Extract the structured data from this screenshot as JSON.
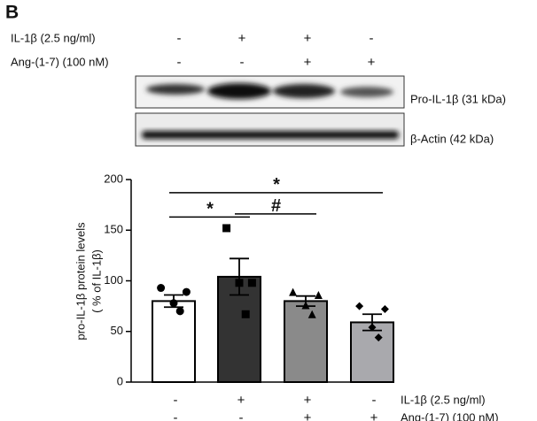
{
  "panel_label": "B",
  "blot": {
    "bands": [
      "Pro-IL-1β (31 kDa)",
      "β-Actin (42 kDa)"
    ]
  },
  "treatments": [
    {
      "label": "IL-1β  (2.5 ng/ml)",
      "signs": [
        "-",
        "+",
        "+",
        "-"
      ]
    },
    {
      "label": "Ang-(1-7) (100 nM)",
      "signs": [
        "-",
        "-",
        "+",
        "+"
      ]
    }
  ],
  "chart_data": {
    "type": "bar",
    "y_label": [
      "pro-IL-1β protein levels",
      "( % of IL-1β)"
    ],
    "conditions": [
      {
        "label": "IL-1β (2.5 ng/ml)",
        "signs": [
          "-",
          "+",
          "+",
          "-"
        ]
      },
      {
        "label": "Ang-(1-7) (100 nM)",
        "signs": [
          "-",
          "-",
          "+",
          "+"
        ]
      }
    ],
    "values": [
      80,
      104,
      80,
      59
    ],
    "errors": [
      6,
      18,
      5,
      8
    ],
    "colors": [
      "#ffffff",
      "#333333",
      "#8a8a8a",
      "#a9a9ad"
    ],
    "markers": [
      "circle",
      "square",
      "triangle",
      "diamond"
    ],
    "points": [
      [
        93,
        89,
        78,
        70
      ],
      [
        152,
        98,
        98,
        67
      ],
      [
        89,
        86,
        76,
        67
      ],
      [
        75,
        72,
        54,
        44
      ]
    ],
    "annotations": [
      {
        "text": "*",
        "y": 163
      },
      {
        "text": "#",
        "y": 166
      },
      {
        "text": "*",
        "y": 187
      }
    ],
    "ylim": [
      0,
      200
    ],
    "yticks": [
      0,
      50,
      100,
      150,
      200
    ]
  }
}
